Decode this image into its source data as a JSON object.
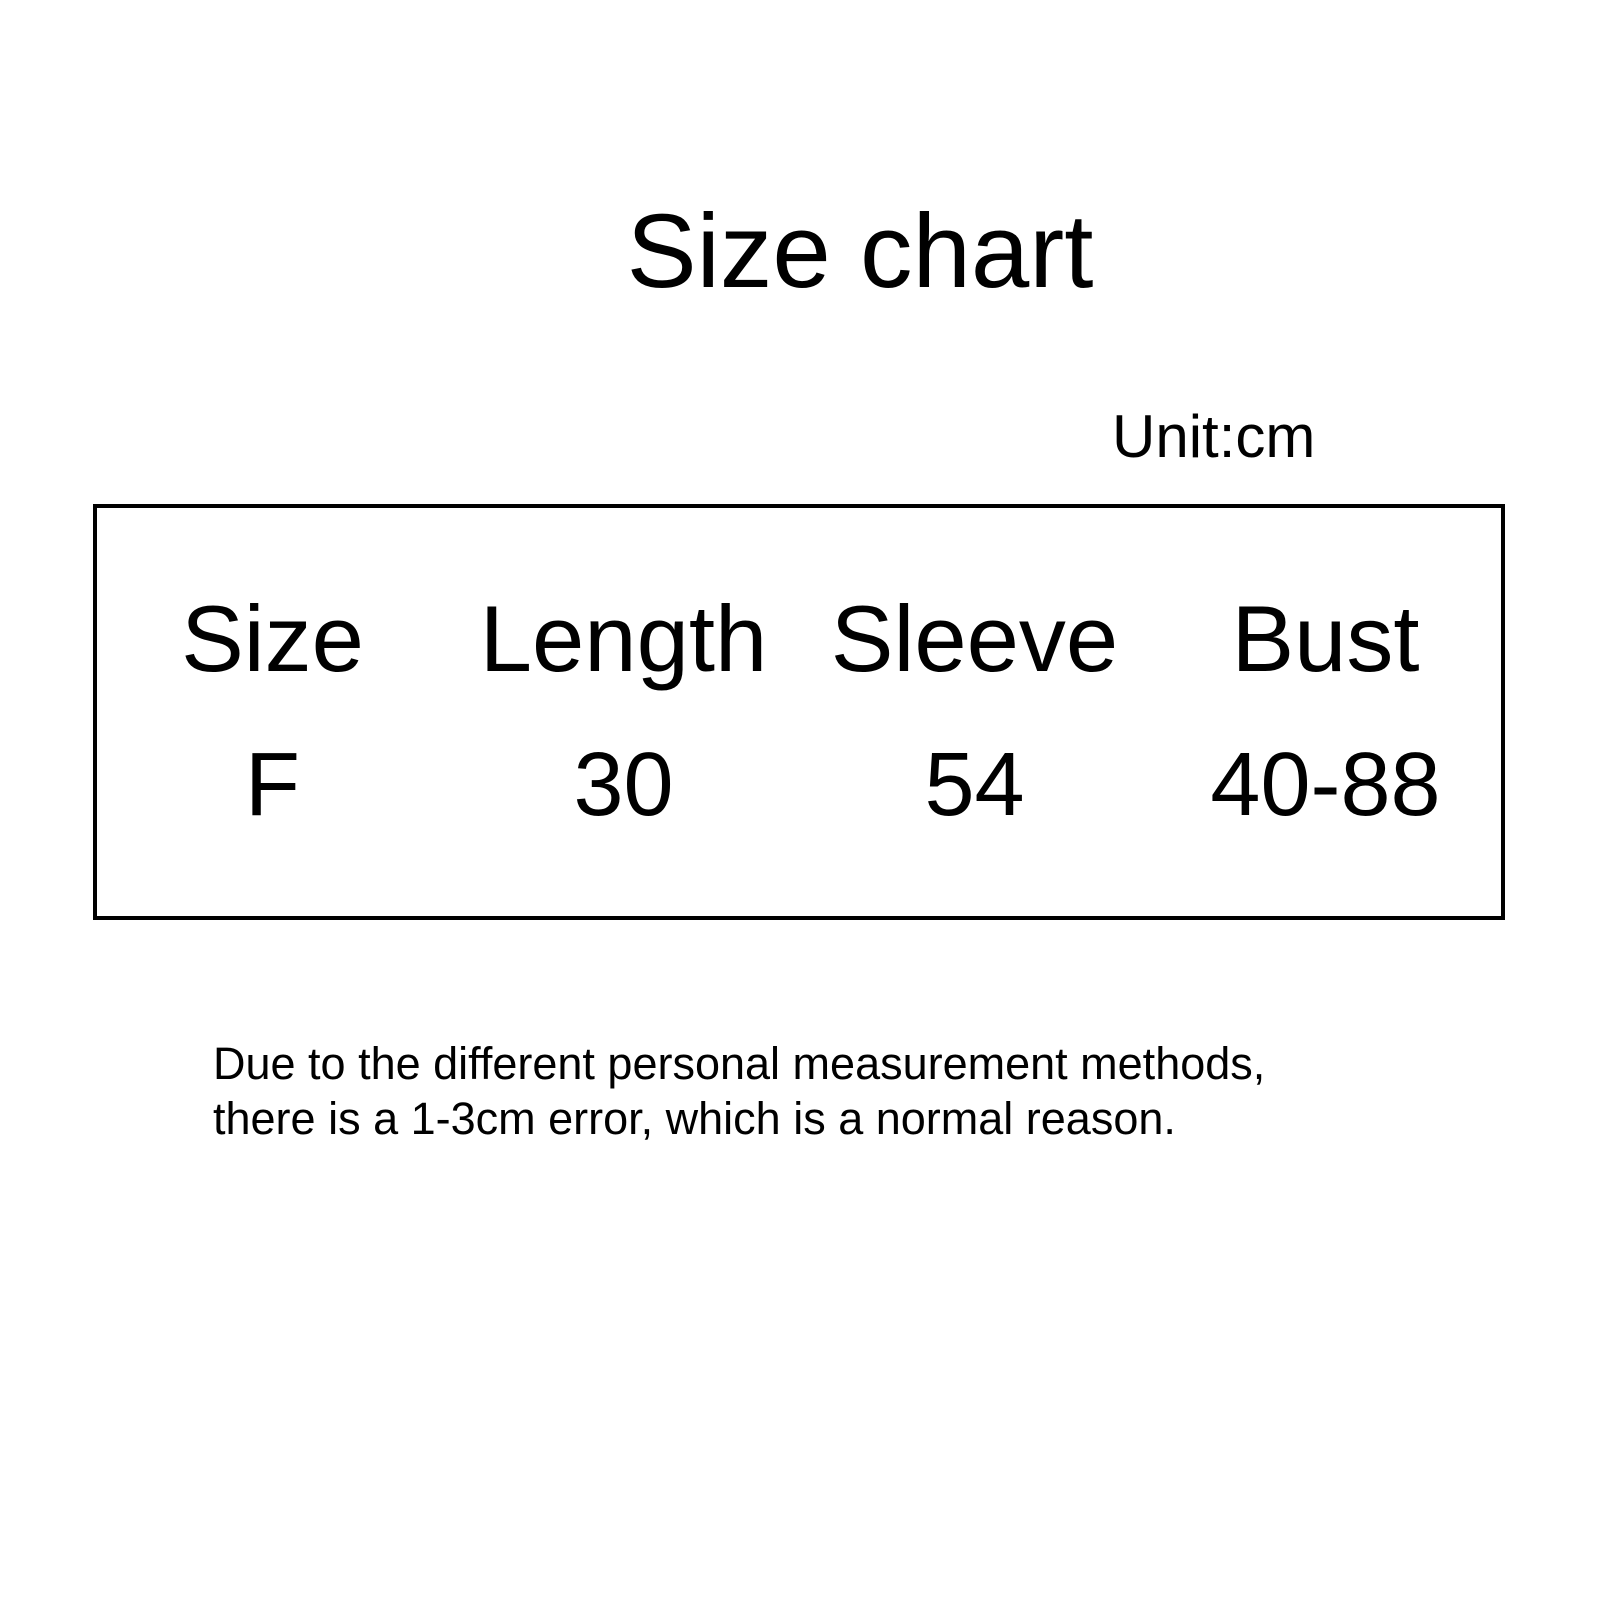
{
  "page": {
    "background_color": "#ffffff",
    "text_color": "#000000",
    "border_color": "#000000"
  },
  "title": "Size chart",
  "unit_label": "Unit:cm",
  "size_table": {
    "headers": [
      "Size",
      "Length",
      "Sleeve",
      "Bust"
    ],
    "row": [
      "F",
      "30",
      "54",
      "40-88"
    ]
  },
  "disclaimer": {
    "line1": "Due to the different personal measurement methods,",
    "line2": "there is a 1-3cm error, which is a normal reason."
  }
}
